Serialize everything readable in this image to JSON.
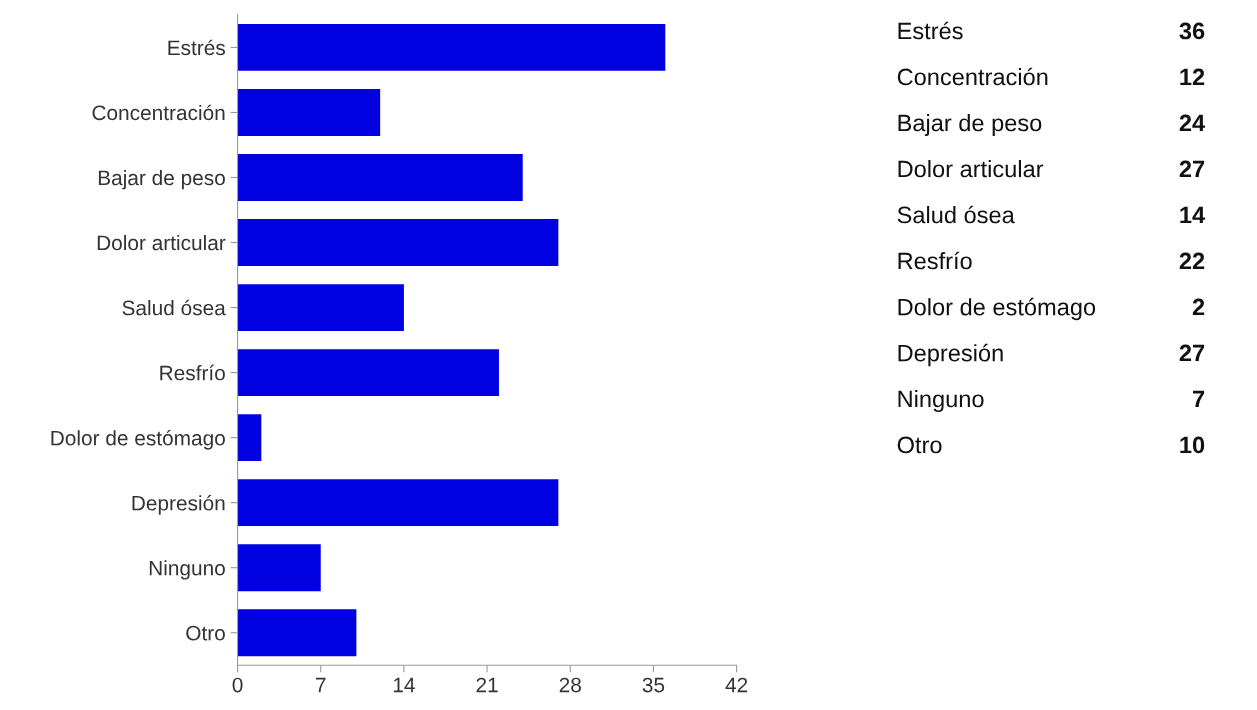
{
  "chart_data": [
    {
      "type": "bar",
      "orientation": "horizontal",
      "categories": [
        "Estrés",
        "Concentración",
        "Bajar de peso",
        "Dolor articular",
        "Salud ósea",
        "Resfrío",
        "Dolor de estómago",
        "Depresión",
        "Ninguno",
        "Otro"
      ],
      "values": [
        36,
        12,
        24,
        27,
        14,
        22,
        2,
        27,
        7,
        10
      ],
      "color": "#0000e0",
      "xlim": [
        0,
        42
      ],
      "xticks": [
        0,
        7,
        14,
        21,
        28,
        35,
        42
      ],
      "grid": false
    },
    {
      "type": "other",
      "categories": [
        "Estrés",
        "Concentración",
        "Bajar de peso",
        "Dolor articular",
        "Salud ósea",
        "Resfrío",
        "Dolor de estómago",
        "Depresión",
        "Ninguno",
        "Otro"
      ],
      "values": [
        36,
        12,
        24,
        27,
        14,
        22,
        2,
        27,
        7,
        10
      ],
      "data_labels": true
    }
  ]
}
